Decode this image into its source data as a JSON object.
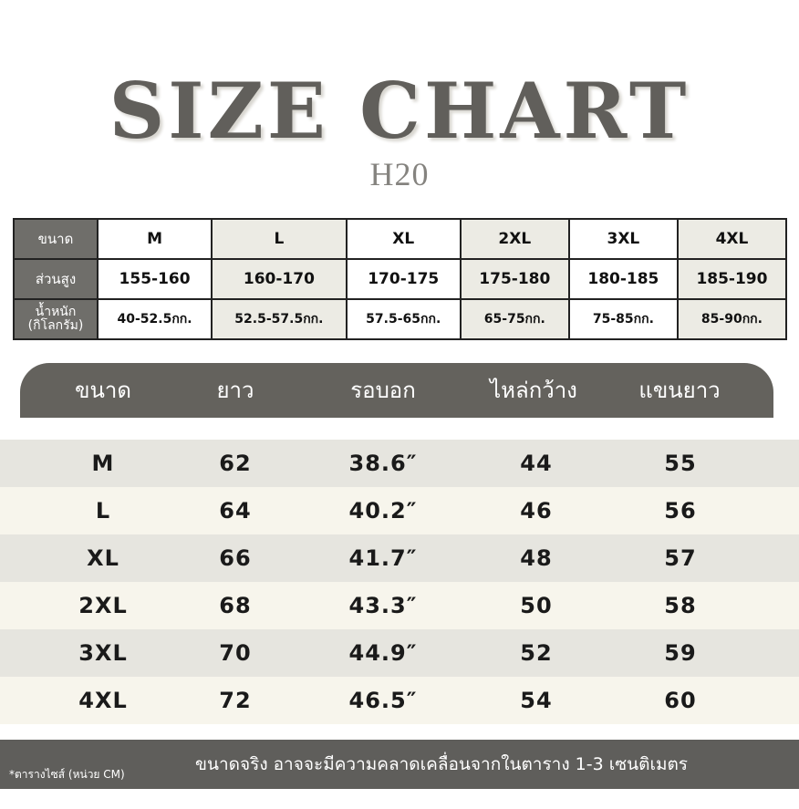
{
  "header": {
    "title": "SIZE CHART",
    "subtitle": "H20"
  },
  "top_table": {
    "labels": [
      "ขนาด",
      "ส่วนสูง",
      "น้ำหนัก (กิโลกรัม)"
    ],
    "sizes": [
      "M",
      "L",
      "XL",
      "2XL",
      "3XL",
      "4XL"
    ],
    "heights": [
      "155-160",
      "160-170",
      "170-175",
      "175-180",
      "180-185",
      "185-190"
    ],
    "weights": [
      "40-52.5กก.",
      "52.5-57.5กก.",
      "57.5-65กก.",
      "65-75กก.",
      "75-85กก.",
      "85-90กก."
    ]
  },
  "measure_table": {
    "headers": [
      "ขนาด",
      "ยาว",
      "รอบอก",
      "ไหล่กว้าง",
      "แขนยาว"
    ],
    "rows": [
      [
        "M",
        "62",
        "38.6″",
        "44",
        "55"
      ],
      [
        "L",
        "64",
        "40.2″",
        "46",
        "56"
      ],
      [
        "XL",
        "66",
        "41.7″",
        "48",
        "57"
      ],
      [
        "2XL",
        "68",
        "43.3″",
        "50",
        "58"
      ],
      [
        "3XL",
        "70",
        "44.9″",
        "52",
        "59"
      ],
      [
        "4XL",
        "72",
        "46.5″",
        "54",
        "60"
      ]
    ]
  },
  "footer": {
    "note": "*ตารางไซส์ (หน่วย  CM)",
    "text": "ขนาดจริง อาจจะมีความคลาดเคลื่อนจากในตาราง 1-3 เซนติเมตร"
  },
  "colors": {
    "primary": "#64625d",
    "row_grey": "#e6e5df",
    "row_cream": "#f7f5ec"
  }
}
